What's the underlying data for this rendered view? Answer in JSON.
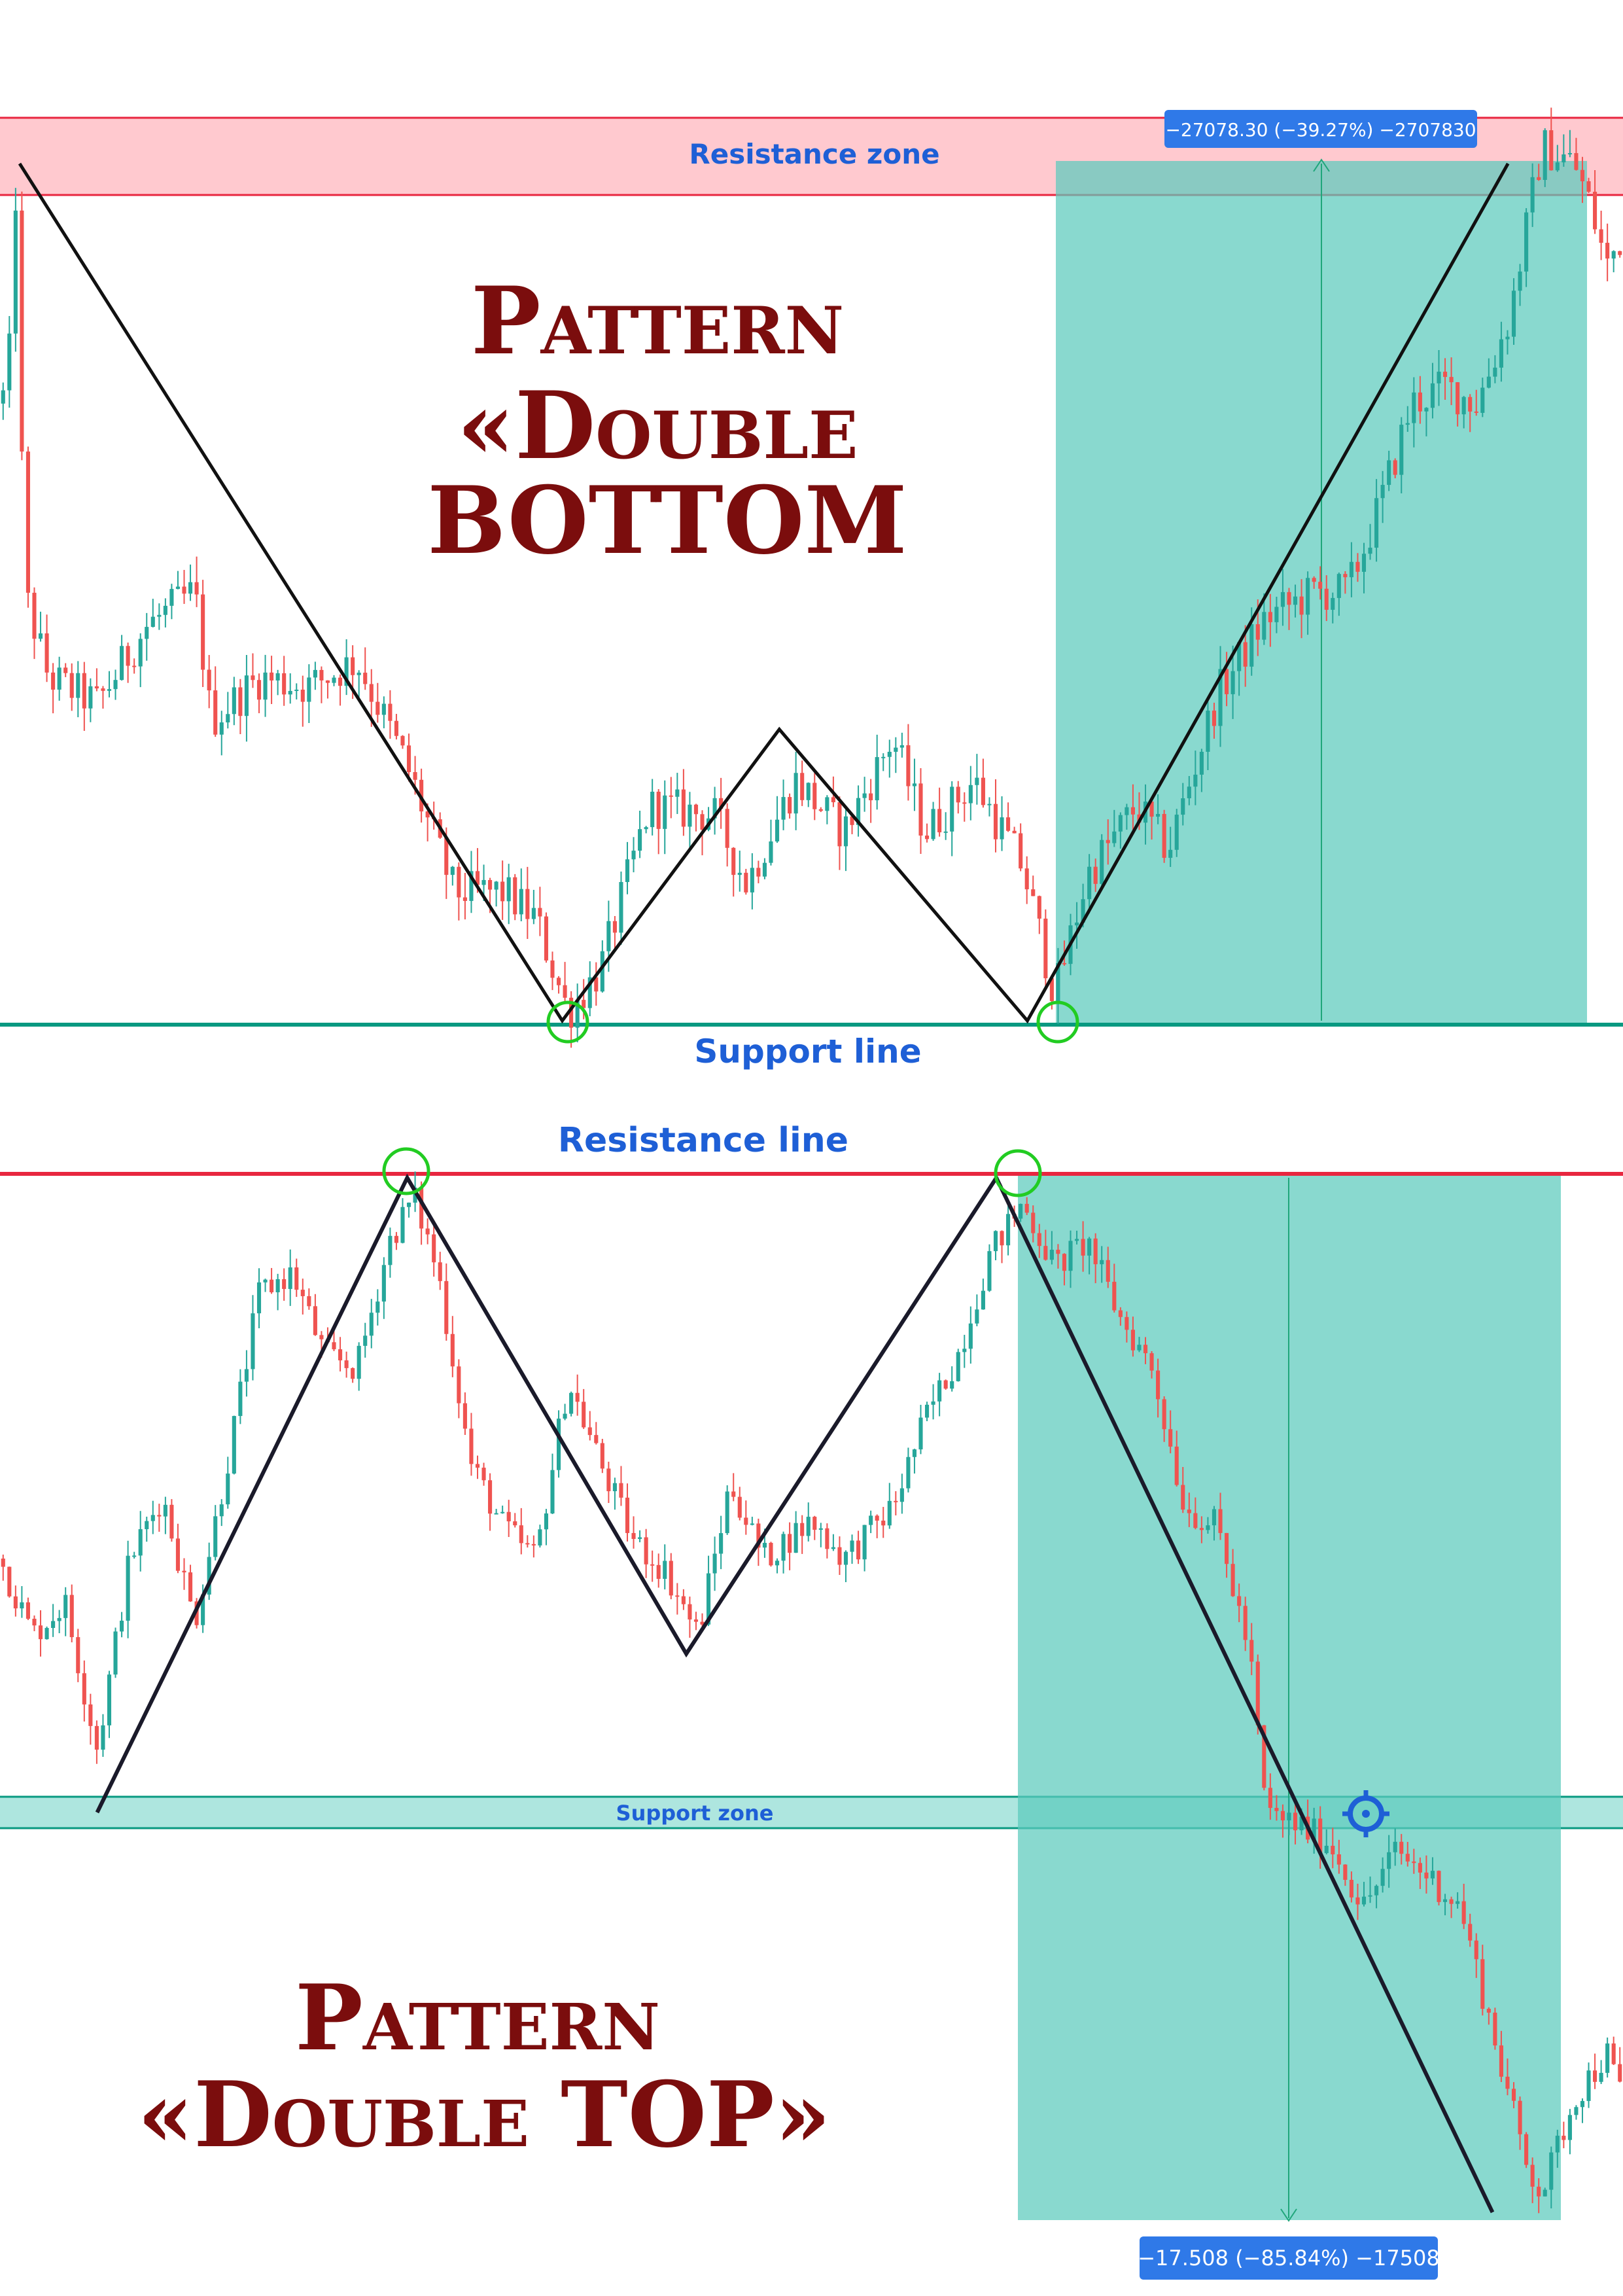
{
  "colors": {
    "bull": "#26a69a",
    "bear": "#ef5350",
    "resistance": "#e8263f",
    "support": "#089981",
    "label_blue": "#1e5fd6",
    "measure_fill": "#5bcbbd",
    "title": "#7b0d0d",
    "marker": "#22cc22"
  },
  "chart_data": [
    {
      "type": "candlestick",
      "title": "Pattern «Double BOTTOM",
      "title_lines": [
        "Pattern",
        "«Double",
        "BOTTOM"
      ],
      "grid": false,
      "annotations": {
        "resistance_zone": "Resistance zone",
        "support_line": "Support line",
        "measurement": "−27078.30 (−39.27%) −2707830"
      },
      "pattern_points": [
        {
          "x": 0.0,
          "y": 1.0
        },
        {
          "x": 0.35,
          "y": 0.0
        },
        {
          "x": 0.49,
          "y": 0.34
        },
        {
          "x": 0.65,
          "y": 0.0
        },
        {
          "x": 0.96,
          "y": 1.0
        }
      ],
      "close_path": [
        {
          "x": 0.0,
          "y": 0.72
        },
        {
          "x": 0.005,
          "y": 0.74
        },
        {
          "x": 0.01,
          "y": 0.98
        },
        {
          "x": 0.015,
          "y": 0.5
        },
        {
          "x": 0.03,
          "y": 0.4
        },
        {
          "x": 0.06,
          "y": 0.37
        },
        {
          "x": 0.09,
          "y": 0.46
        },
        {
          "x": 0.12,
          "y": 0.5
        },
        {
          "x": 0.13,
          "y": 0.35
        },
        {
          "x": 0.16,
          "y": 0.4
        },
        {
          "x": 0.19,
          "y": 0.39
        },
        {
          "x": 0.22,
          "y": 0.42
        },
        {
          "x": 0.25,
          "y": 0.3
        },
        {
          "x": 0.28,
          "y": 0.15
        },
        {
          "x": 0.31,
          "y": 0.15
        },
        {
          "x": 0.33,
          "y": 0.12
        },
        {
          "x": 0.35,
          "y": 0.01
        },
        {
          "x": 0.37,
          "y": 0.06
        },
        {
          "x": 0.4,
          "y": 0.25
        },
        {
          "x": 0.44,
          "y": 0.24
        },
        {
          "x": 0.46,
          "y": 0.16
        },
        {
          "x": 0.49,
          "y": 0.28
        },
        {
          "x": 0.52,
          "y": 0.22
        },
        {
          "x": 0.55,
          "y": 0.33
        },
        {
          "x": 0.57,
          "y": 0.22
        },
        {
          "x": 0.6,
          "y": 0.28
        },
        {
          "x": 0.63,
          "y": 0.18
        },
        {
          "x": 0.65,
          "y": 0.03
        },
        {
          "x": 0.67,
          "y": 0.17
        },
        {
          "x": 0.7,
          "y": 0.25
        },
        {
          "x": 0.72,
          "y": 0.2
        },
        {
          "x": 0.75,
          "y": 0.38
        },
        {
          "x": 0.78,
          "y": 0.47
        },
        {
          "x": 0.81,
          "y": 0.5
        },
        {
          "x": 0.83,
          "y": 0.5
        },
        {
          "x": 0.85,
          "y": 0.6
        },
        {
          "x": 0.87,
          "y": 0.72
        },
        {
          "x": 0.89,
          "y": 0.74
        },
        {
          "x": 0.91,
          "y": 0.72
        },
        {
          "x": 0.93,
          "y": 0.82
        },
        {
          "x": 0.95,
          "y": 1.02
        },
        {
          "x": 0.97,
          "y": 1.0
        },
        {
          "x": 0.98,
          "y": 0.95
        },
        {
          "x": 0.99,
          "y": 0.88
        },
        {
          "x": 1.0,
          "y": 0.92
        }
      ]
    },
    {
      "type": "candlestick",
      "title": "Pattern «Double TOP»",
      "title_lines": [
        "Pattern",
        "«Double TOP»"
      ],
      "grid": false,
      "annotations": {
        "resistance_line": "Resistance line",
        "support_zone": "Support zone",
        "measurement": "−17.508 (−85.84%) −17508"
      },
      "pattern_points": [
        {
          "x": 0.05,
          "y": 0.0
        },
        {
          "x": 0.25,
          "y": 1.0
        },
        {
          "x": 0.43,
          "y": 0.25
        },
        {
          "x": 0.63,
          "y": 1.0
        },
        {
          "x": 0.95,
          "y": -0.63
        }
      ],
      "close_path": [
        {
          "x": 0.0,
          "y": 0.4
        },
        {
          "x": 0.02,
          "y": 0.28
        },
        {
          "x": 0.04,
          "y": 0.33
        },
        {
          "x": 0.06,
          "y": 0.1
        },
        {
          "x": 0.08,
          "y": 0.4
        },
        {
          "x": 0.1,
          "y": 0.5
        },
        {
          "x": 0.12,
          "y": 0.3
        },
        {
          "x": 0.14,
          "y": 0.55
        },
        {
          "x": 0.16,
          "y": 0.82
        },
        {
          "x": 0.18,
          "y": 0.85
        },
        {
          "x": 0.2,
          "y": 0.72
        },
        {
          "x": 0.22,
          "y": 0.7
        },
        {
          "x": 0.24,
          "y": 0.9
        },
        {
          "x": 0.255,
          "y": 0.97
        },
        {
          "x": 0.27,
          "y": 0.85
        },
        {
          "x": 0.29,
          "y": 0.55
        },
        {
          "x": 0.31,
          "y": 0.45
        },
        {
          "x": 0.33,
          "y": 0.4
        },
        {
          "x": 0.35,
          "y": 0.68
        },
        {
          "x": 0.37,
          "y": 0.55
        },
        {
          "x": 0.39,
          "y": 0.43
        },
        {
          "x": 0.41,
          "y": 0.38
        },
        {
          "x": 0.43,
          "y": 0.28
        },
        {
          "x": 0.45,
          "y": 0.52
        },
        {
          "x": 0.47,
          "y": 0.4
        },
        {
          "x": 0.5,
          "y": 0.46
        },
        {
          "x": 0.52,
          "y": 0.4
        },
        {
          "x": 0.55,
          "y": 0.48
        },
        {
          "x": 0.57,
          "y": 0.62
        },
        {
          "x": 0.59,
          "y": 0.72
        },
        {
          "x": 0.61,
          "y": 0.88
        },
        {
          "x": 0.63,
          "y": 0.96
        },
        {
          "x": 0.65,
          "y": 0.86
        },
        {
          "x": 0.67,
          "y": 0.9
        },
        {
          "x": 0.69,
          "y": 0.78
        },
        {
          "x": 0.71,
          "y": 0.7
        },
        {
          "x": 0.73,
          "y": 0.48
        },
        {
          "x": 0.75,
          "y": 0.45
        },
        {
          "x": 0.77,
          "y": 0.25
        },
        {
          "x": 0.78,
          "y": 0.0
        },
        {
          "x": 0.8,
          "y": -0.02
        },
        {
          "x": 0.82,
          "y": -0.05
        },
        {
          "x": 0.84,
          "y": -0.15
        },
        {
          "x": 0.86,
          "y": -0.06
        },
        {
          "x": 0.88,
          "y": -0.1
        },
        {
          "x": 0.9,
          "y": -0.15
        },
        {
          "x": 0.92,
          "y": -0.35
        },
        {
          "x": 0.94,
          "y": -0.55
        },
        {
          "x": 0.95,
          "y": -0.6
        },
        {
          "x": 0.97,
          "y": -0.45
        },
        {
          "x": 0.99,
          "y": -0.38
        },
        {
          "x": 1.0,
          "y": -0.45
        }
      ]
    }
  ]
}
